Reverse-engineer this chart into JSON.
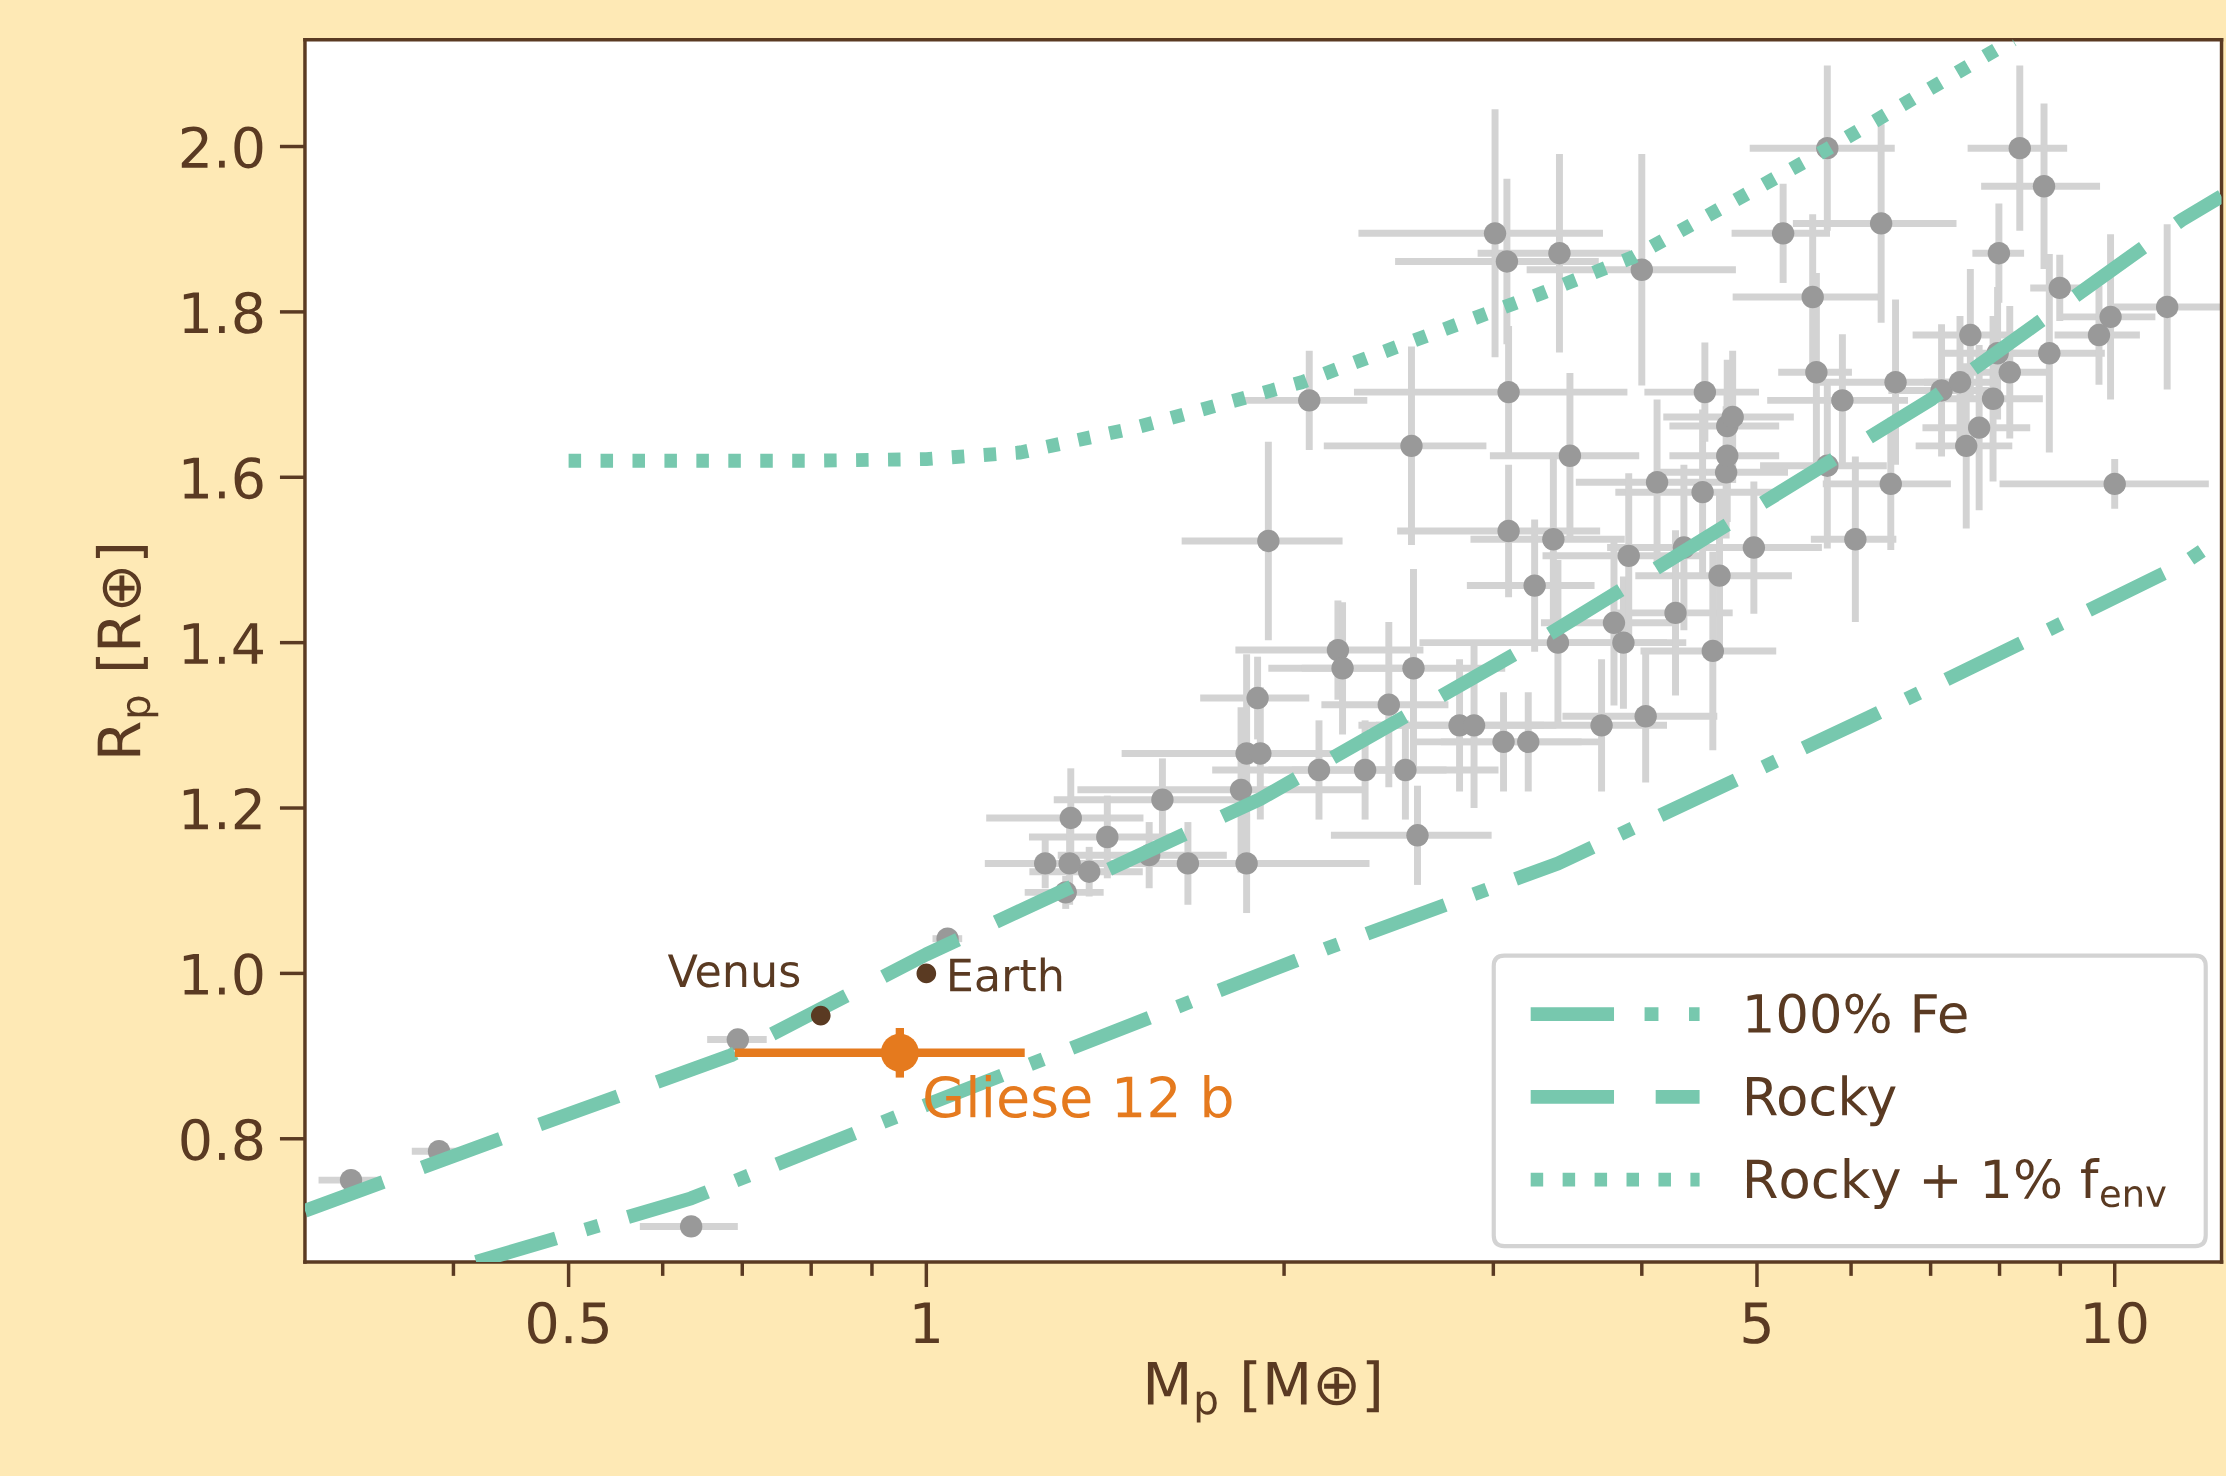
{
  "chart_data": {
    "type": "scatter",
    "xlabel": "M$_{p}$ [M⊕]",
    "ylabel": "R$_{p}$ [R⊕]",
    "log": "x",
    "xlim": [
      0.3,
      12.3
    ],
    "ylim": [
      0.651,
      2.129
    ],
    "xticks": [
      {
        "value": 0.4,
        "label": null
      },
      0.5,
      {
        "value": 0.6,
        "label": null
      },
      {
        "value": 0.7,
        "label": null
      },
      {
        "value": 0.8,
        "label": null
      },
      {
        "value": 0.9,
        "label": null
      },
      1,
      {
        "value": 2,
        "label": null
      },
      {
        "value": 3,
        "label": null
      },
      {
        "value": 4,
        "label": null
      },
      5,
      {
        "value": 6,
        "label": null
      },
      {
        "value": 7,
        "label": null
      },
      {
        "value": 8,
        "label": null
      },
      {
        "value": 9,
        "label": null
      },
      10
    ],
    "yticks": [
      {
        "value": 0.8,
        "label": "0.8"
      },
      {
        "value": 1.0,
        "label": "1.0"
      },
      {
        "value": 1.2,
        "label": "1.2"
      },
      {
        "value": 1.4,
        "label": "1.4"
      },
      {
        "value": 1.6,
        "label": "1.6"
      },
      {
        "value": 1.8,
        "label": "1.8"
      },
      {
        "value": 2.0,
        "label": "2.0"
      }
    ],
    "grid": false,
    "legend": "bottom right",
    "marker": "circle",
    "series": [
      {
        "color": "#999999",
        "x": [
          0.328,
          0.389,
          0.634,
          0.694,
          1.042,
          1.31,
          1.259,
          1.32,
          1.323,
          1.371,
          1.42,
          1.54,
          1.58,
          1.66,
          1.84,
          1.86,
          1.91,
          1.86,
          1.9,
          1.94,
          2.1,
          2.14,
          2.22,
          2.24,
          2.34,
          2.45,
          2.53,
          2.57,
          2.59,
          2.56,
          2.81,
          2.89,
          3.01,
          3.08,
          3.09,
          3.09,
          3.06,
          3.21,
          3.25,
          3.37,
          3.41,
          3.48,
          3.4,
          3.7,
          3.79,
          3.86,
          3.9,
          4.0,
          4.03,
          4.12,
          4.27,
          4.34,
          4.5,
          4.52,
          4.59,
          4.65,
          4.71,
          4.72,
          4.72,
          4.77,
          4.97,
          5.26,
          5.57,
          5.61,
          5.73,
          5.73,
          5.9,
          6.05,
          6.36,
          6.48,
          6.54,
          7.15,
          7.41,
          7.5,
          7.56,
          7.69,
          7.9,
          7.99,
          7.97,
          8.16,
          8.32,
          8.72,
          8.81,
          8.99,
          9.7,
          9.92,
          10.0,
          11.07
        ],
        "values": [
          0.75,
          0.785,
          0.694,
          0.92,
          1.042,
          1.098,
          1.133,
          1.133,
          1.188,
          1.123,
          1.165,
          1.143,
          1.21,
          1.133,
          1.222,
          1.266,
          1.266,
          1.133,
          1.333,
          1.523,
          1.693,
          1.246,
          1.391,
          1.369,
          1.246,
          1.325,
          1.246,
          1.369,
          1.167,
          1.638,
          1.3,
          1.3,
          1.895,
          1.861,
          1.703,
          1.535,
          1.28,
          1.28,
          1.469,
          1.525,
          1.871,
          1.626,
          1.4,
          1.3,
          1.424,
          1.4,
          1.505,
          1.851,
          1.311,
          1.594,
          1.436,
          1.515,
          1.582,
          1.703,
          1.39,
          1.481,
          1.606,
          1.626,
          1.662,
          1.673,
          1.515,
          1.895,
          1.818,
          1.727,
          1.998,
          1.614,
          1.693,
          1.525,
          1.907,
          1.592,
          1.715,
          1.705,
          1.715,
          1.638,
          1.772,
          1.66,
          1.695,
          1.871,
          1.75,
          1.727,
          1.998,
          1.952,
          1.75,
          1.829,
          1.772,
          1.794,
          1.592,
          1.806
        ],
        "xerrors": [
          0.02,
          0.02,
          0.06,
          0.04,
          0.03,
          0.1,
          0.1,
          0.2,
          0.2,
          0.15,
          0.2,
          0.25,
          0.3,
          0.3,
          0.5,
          0.4,
          0.3,
          0.5,
          0.2,
          0.3,
          0.25,
          0.4,
          0.4,
          0.3,
          0.4,
          0.3,
          0.5,
          0.5,
          0.4,
          0.4,
          0.5,
          0.5,
          0.7,
          0.6,
          0.8,
          0.6,
          0.5,
          0.5,
          0.4,
          0.5,
          0.5,
          0.5,
          0.8,
          0.5,
          0.5,
          0.5,
          0.6,
          0.8,
          0.6,
          0.6,
          0.5,
          0.6,
          0.7,
          0.5,
          0.6,
          0.7,
          0.6,
          0.5,
          0.5,
          0.6,
          0.7,
          0.5,
          0.8,
          0.4,
          0.8,
          0.7,
          0.8,
          0.5,
          1.0,
          0.8,
          0.9,
          0.7,
          0.5,
          0.7,
          0.8,
          0.8,
          0.8,
          0.4,
          0.8,
          0.6,
          0.8,
          1.0,
          1.0,
          0.5,
          0.8,
          0.9,
          2.0,
          1.2
        ],
        "errors": [
          0.01,
          0.01,
          0.01,
          0.01,
          0.01,
          0.02,
          0.03,
          0.05,
          0.06,
          0.03,
          0.05,
          0.04,
          0.05,
          0.05,
          0.1,
          0.12,
          0.08,
          0.06,
          0.05,
          0.12,
          0.06,
          0.06,
          0.06,
          0.08,
          0.06,
          0.1,
          0.06,
          0.12,
          0.06,
          0.12,
          0.08,
          0.1,
          0.15,
          0.1,
          0.08,
          0.08,
          0.06,
          0.06,
          0.08,
          0.1,
          0.12,
          0.1,
          0.1,
          0.08,
          0.1,
          0.08,
          0.1,
          0.14,
          0.08,
          0.1,
          0.1,
          0.1,
          0.1,
          0.06,
          0.12,
          0.1,
          0.08,
          0.08,
          0.08,
          0.08,
          0.08,
          0.06,
          0.1,
          0.12,
          0.1,
          0.1,
          0.08,
          0.1,
          0.12,
          0.08,
          0.1,
          0.08,
          0.08,
          0.1,
          0.08,
          0.1,
          0.1,
          0.06,
          0.08,
          0.08,
          0.1,
          0.1,
          0.12,
          0.04,
          0.06,
          0.1,
          0.03,
          0.1
        ]
      },
      {
        "name": "Venus",
        "color": "#5a3a22",
        "x": [
          0.815
        ],
        "values": [
          0.949
        ]
      },
      {
        "name": "Earth",
        "color": "#5a3a22",
        "x": [
          1.0
        ],
        "values": [
          1.0
        ]
      },
      {
        "name": "Gliese 12 b",
        "color": "#e57a1e",
        "x": [
          0.95
        ],
        "values": [
          0.904
        ],
        "xerrors": [
          0.26
        ],
        "errors": [
          0.03
        ]
      },
      {
        "type": "line",
        "name": "100% Fe",
        "color": "#77c8ae",
        "marker": "none",
        "line_style": "dashdot",
        "x": [
          0.418,
          0.634,
          1.0,
          2.18,
          3.4,
          6.2,
          11.38,
          12.1
        ],
        "values": [
          0.651,
          0.728,
          0.841,
          1.031,
          1.133,
          1.309,
          1.494,
          1.52
        ]
      },
      {
        "type": "line",
        "name": "Rocky",
        "color": "#77c8ae",
        "marker": "none",
        "line_style": "dashed",
        "x": [
          0.3,
          0.444,
          0.685,
          1.0,
          1.91,
          3.28,
          7.02,
          11.38,
          12.3
        ],
        "values": [
          0.713,
          0.803,
          0.901,
          1.023,
          1.211,
          1.403,
          1.695,
          1.911,
          1.94
        ]
      },
      {
        "type": "line",
        "name": "Rocky + 1% f$_{env}$",
        "color": "#77c8ae",
        "marker": "none",
        "line_style": "dotted",
        "x": [
          0.5,
          0.8,
          1.0,
          1.2,
          1.5,
          2.07,
          3.3,
          3.93,
          5.7,
          8.21
        ],
        "values": [
          1.62,
          1.62,
          1.622,
          1.63,
          1.66,
          1.715,
          1.823,
          1.866,
          1.995,
          2.129
        ]
      }
    ]
  }
}
